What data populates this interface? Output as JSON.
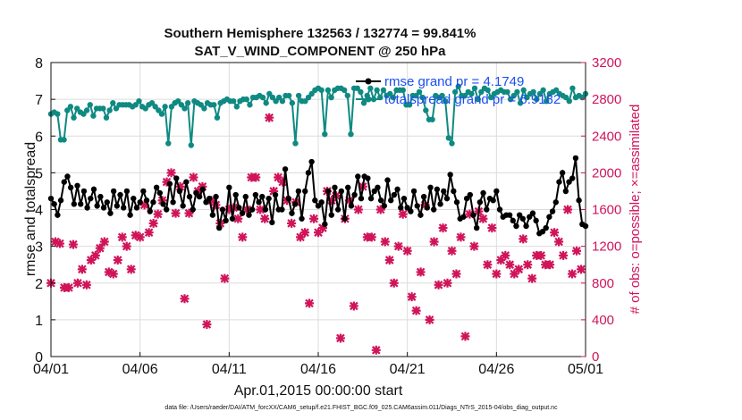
{
  "chart_data": {
    "type": "line",
    "title": "Southern Hemisphere 132563 / 132774 = 99.841%",
    "subtitle": "SAT_V_WIND_COMPONENT @ 250 hPa",
    "xlabel": "Apr.01,2015 00:00:00 start",
    "ylabel_left": "rmse and totalspread",
    "ylabel_right": "# of obs: o=possible; ×=assimilated",
    "x_ticks": [
      "04/01",
      "04/06",
      "04/11",
      "04/16",
      "04/21",
      "04/26",
      "05/01"
    ],
    "x_range_days": [
      0,
      30
    ],
    "y_left_range": [
      0,
      8
    ],
    "y_left_ticks": [
      "0",
      "1",
      "2",
      "3",
      "4",
      "5",
      "6",
      "7",
      "8"
    ],
    "y_right_range": [
      0,
      3200
    ],
    "y_right_ticks": [
      "0",
      "400",
      "800",
      "1200",
      "1600",
      "2000",
      "2400",
      "2800",
      "3200"
    ],
    "grid": true,
    "legend_position": "top-right",
    "series": [
      {
        "name": "rmse grand pr = 4.1749",
        "axis": "left",
        "color": "#000000",
        "marker": "filled-circle",
        "values": [
          4.3,
          4.15,
          3.85,
          4.25,
          4.75,
          4.9,
          4.6,
          4.15,
          4.65,
          4.15,
          4.5,
          4.05,
          4.3,
          4.55,
          4.1,
          4.35,
          4.05,
          4.2,
          3.9,
          4.5,
          4.1,
          4.4,
          4.05,
          4.5,
          3.85,
          4.3,
          4.05,
          4.2,
          4.5,
          4.25,
          3.95,
          4.2,
          4.6,
          4.45,
          4.15,
          4.0,
          4.7,
          4.2,
          4.85,
          4.5,
          4.1,
          4.75,
          4.35,
          4.0,
          4.45,
          4.35,
          4.55,
          4.2,
          4.3,
          3.85,
          4.35,
          3.5,
          4.0,
          3.7,
          4.6,
          3.75,
          4.4,
          4.05,
          3.9,
          4.35,
          3.85,
          4.0,
          4.4,
          4.2,
          4.35,
          4.0,
          4.3,
          3.65,
          4.4,
          4.0,
          4.0,
          5.1,
          4.3,
          3.9,
          4.15,
          4.5,
          3.75,
          4.5,
          5.0,
          5.3,
          4.25,
          4.1,
          4.2,
          3.6,
          4.5,
          3.85,
          4.6,
          4.0,
          4.5,
          3.75,
          4.6,
          4.1,
          4.4,
          4.9,
          4.3,
          4.9,
          4.85,
          4.3,
          4.5,
          4.6,
          4.25,
          4.1,
          4.8,
          4.25,
          4.4,
          4.55,
          4.05,
          4.3,
          4.05,
          3.95,
          4.5,
          4.1,
          3.85,
          4.35,
          4.05,
          4.6,
          4.0,
          4.55,
          4.15,
          4.5,
          4.3,
          4.95,
          4.5,
          4.2,
          3.75,
          3.8,
          4.3,
          4.4,
          3.85,
          3.5,
          4.2,
          4.45,
          4.0,
          4.3,
          4.25,
          4.5,
          4.0,
          3.8,
          3.85,
          3.85,
          3.7,
          3.55,
          3.85,
          3.75,
          3.55,
          3.8,
          3.9,
          3.7,
          3.35,
          3.4,
          3.5,
          3.8,
          3.95,
          4.2,
          4.75,
          5.0,
          4.5,
          4.75,
          4.85,
          5.4,
          4.25,
          3.6,
          3.55
        ]
      },
      {
        "name": "totalspread grand pr = 6.9182",
        "axis": "left",
        "color": "#0f8a82",
        "marker": "filled-circle",
        "values": [
          6.6,
          6.65,
          6.6,
          5.9,
          5.9,
          6.7,
          6.8,
          6.5,
          6.75,
          6.65,
          6.6,
          6.7,
          6.85,
          6.55,
          6.75,
          6.75,
          6.75,
          6.5,
          6.7,
          6.9,
          6.75,
          6.85,
          6.85,
          6.85,
          6.85,
          6.8,
          6.85,
          6.95,
          6.8,
          6.75,
          6.85,
          6.9,
          6.8,
          6.7,
          6.6,
          6.8,
          5.8,
          6.8,
          6.9,
          6.95,
          6.85,
          6.75,
          6.9,
          5.75,
          6.95,
          6.9,
          6.85,
          6.75,
          6.9,
          6.85,
          6.85,
          6.5,
          6.9,
          6.95,
          7.0,
          6.95,
          6.95,
          6.8,
          6.95,
          7.0,
          7.0,
          6.85,
          7.05,
          7.05,
          7.1,
          7.05,
          6.9,
          7.15,
          7.05,
          6.95,
          7.05,
          6.95,
          7.1,
          7.1,
          6.9,
          5.8,
          7.1,
          6.95,
          6.95,
          7.05,
          7.15,
          7.25,
          7.3,
          7.25,
          6.05,
          7.25,
          7.05,
          7.25,
          7.3,
          7.3,
          7.25,
          7.1,
          6.05,
          7.3,
          7.3,
          7.2,
          6.9,
          7.1,
          7.3,
          7.0,
          7.25,
          7.05,
          7.25,
          7.1,
          7.15,
          7.05,
          7.25,
          7.25,
          7.25,
          6.85,
          6.85,
          7.1,
          7.1,
          7.2,
          7.05,
          6.7,
          6.45,
          6.45,
          7.1,
          7.05,
          7.1,
          6.95,
          5.95,
          5.8,
          7.2,
          7.35,
          7.1,
          7.1,
          7.2,
          7.15,
          7.3,
          7.0,
          7.2,
          7.3,
          7.25,
          7.05,
          7.15,
          7.2,
          7.25,
          7.2,
          7.2,
          7.0,
          7.1,
          7.2,
          6.9,
          7.25,
          7.05,
          7.15,
          7.2,
          7.0,
          7.15,
          7.25,
          6.95,
          7.15,
          7.2,
          7.25,
          7.15,
          7.1,
          7.05,
          6.95,
          7.3,
          7.05,
          7.1,
          7.05,
          7.15
        ]
      },
      {
        "name": "assimilated",
        "axis": "right",
        "color": "#d0145a",
        "marker": "cross",
        "x_days": [
          0.0,
          0.25,
          0.5,
          0.75,
          1.0,
          1.25,
          1.5,
          1.75,
          2.0,
          2.25,
          2.5,
          2.75,
          3.0,
          3.25,
          3.5,
          3.75,
          4.0,
          4.25,
          4.5,
          4.75,
          5.0,
          5.25,
          5.5,
          5.75,
          6.0,
          6.25,
          6.5,
          6.75,
          7.0,
          7.25,
          7.5,
          7.75,
          8.0,
          8.25,
          8.5,
          8.75,
          9.0,
          9.25,
          9.5,
          9.75,
          10.0,
          10.25,
          10.5,
          10.75,
          11.0,
          11.25,
          11.5,
          11.75,
          12.0,
          12.25,
          12.5,
          12.75,
          13.0,
          13.25,
          13.5,
          13.75,
          14.0,
          14.25,
          14.5,
          14.75,
          15.0,
          15.25,
          15.5,
          15.75,
          16.0,
          16.25,
          16.5,
          16.75,
          17.0,
          17.25,
          17.5,
          17.75,
          18.0,
          18.25,
          18.5,
          18.75,
          19.0,
          19.25,
          19.5,
          19.75,
          20.0,
          20.25,
          20.5,
          20.75,
          21.0,
          21.25,
          21.5,
          21.75,
          22.0,
          22.25,
          22.5,
          22.75,
          23.0,
          23.25,
          23.5,
          23.75,
          24.0,
          24.25,
          24.5,
          24.75,
          25.0,
          25.25,
          25.5,
          25.75,
          26.0,
          26.25,
          26.5,
          26.75,
          27.0,
          27.25,
          27.5,
          27.75,
          28.0,
          28.25,
          28.5,
          28.75,
          29.0,
          29.25,
          29.5,
          29.75
        ],
        "values": [
          800,
          1250,
          1230,
          750,
          750,
          1220,
          800,
          950,
          780,
          1050,
          1100,
          1180,
          1250,
          920,
          900,
          1050,
          1300,
          1200,
          950,
          1320,
          1300,
          1650,
          1350,
          1450,
          1550,
          1700,
          1900,
          2000,
          1560,
          1850,
          630,
          1560,
          1950,
          1800,
          1850,
          350,
          1700,
          1650,
          1450,
          850,
          1600,
          1620,
          1500,
          1300,
          1600,
          1950,
          1950,
          1600,
          1500,
          2600,
          1800,
          1950,
          1900,
          1700,
          1450,
          1680,
          1300,
          1350,
          580,
          1500,
          1350,
          1400,
          1800,
          1700,
          1750,
          200,
          1500,
          1700,
          550,
          1600,
          1850,
          1300,
          1300,
          70,
          1600,
          1250,
          1050,
          800,
          1200,
          1550,
          1150,
          650,
          500,
          920,
          1650,
          400,
          1250,
          780,
          1400,
          800,
          1150,
          900,
          1300,
          220,
          1550,
          1200,
          1580,
          1500,
          1000,
          1400,
          900,
          1050,
          1100,
          1000,
          900,
          950,
          1280,
          1000,
          850,
          1100,
          1100,
          1000,
          1000,
          1350,
          1250,
          1100,
          1600,
          900,
          1150,
          950
        ]
      }
    ]
  },
  "footer_text": "data file: /Users/raeder/DAI/ATM_forcXX/CAM6_setup/f.e21.FHIST_BGC.f09_025.CAM6assim.011/Diags_NTrS_2015-04/obs_diag_output.nc",
  "colors": {
    "rmse": "#000000",
    "spread": "#0f8a82",
    "obs": "#d0145a",
    "legend_text": "#1a4ff0",
    "grid": "#dcdcdc"
  }
}
